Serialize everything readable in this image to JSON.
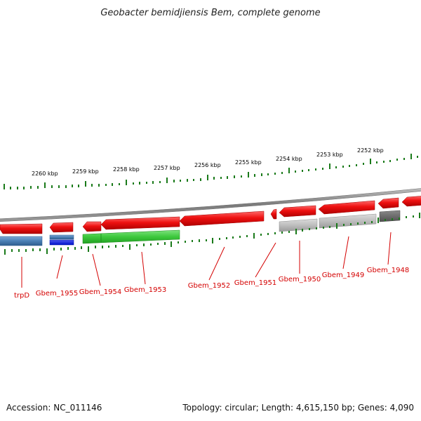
{
  "title": "Geobacter bemidjiensis Bem, complete genome",
  "footer": {
    "accession": "Accession: NC_011146",
    "summary": "Topology: circular; Length: 4,615,150 bp; Genes: 4,090"
  },
  "colors": {
    "forward_gene": "#ee1111",
    "backbone": "#808080",
    "tick": "#1a7a1a",
    "label": "#d40000",
    "cds_steelblue": "#4a7fb5",
    "cds_blue": "#0a1ad8",
    "cds_green": "#3cc83c",
    "cds_lightgray": "#b8b8b8",
    "cds_darkgray": "#6a6a6a"
  },
  "kbp_labels": [
    "2260 kbp",
    "2259 kbp",
    "2258 kbp",
    "2257 kbp",
    "2256 kbp",
    "2255 kbp",
    "2254 kbp",
    "2253 kbp",
    "2252 kbp"
  ],
  "genes": [
    {
      "name": "trpD",
      "strand": "reverse",
      "feature_color": "cds_steelblue"
    },
    {
      "name": "Gbem_1955",
      "strand": "reverse",
      "feature_color": "cds_blue"
    },
    {
      "name": "Gbem_1954",
      "strand": "reverse",
      "feature_color": "cds_green"
    },
    {
      "name": "Gbem_1953",
      "strand": "reverse",
      "feature_color": "cds_green"
    },
    {
      "name": "Gbem_1952",
      "strand": "reverse",
      "feature_color": "forward_gene"
    },
    {
      "name": "Gbem_1951",
      "strand": "reverse",
      "feature_color": "forward_gene"
    },
    {
      "name": "Gbem_1950",
      "strand": "reverse",
      "feature_color": "cds_lightgray"
    },
    {
      "name": "Gbem_1949",
      "strand": "reverse",
      "feature_color": "cds_lightgray"
    },
    {
      "name": "Gbem_1948",
      "strand": "reverse",
      "feature_color": "cds_darkgray"
    }
  ]
}
